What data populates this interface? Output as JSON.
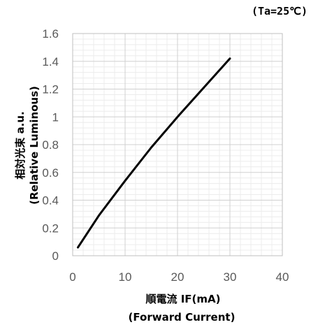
{
  "chart_data": {
    "type": "line",
    "condition": "(Ta=25℃)",
    "xlabel": "順電流 IF(mA)",
    "xlabel_en": "(Forward Current)",
    "ylabel": "相対光束 a.u.",
    "ylabel_en": "(Relative Luminous)",
    "xlim": [
      0,
      40
    ],
    "ylim": [
      0,
      1.6
    ],
    "x_ticks": [
      "0",
      "10",
      "20",
      "30",
      "40"
    ],
    "y_ticks": [
      "0",
      "0.2",
      "0.4",
      "0.6",
      "0.8",
      "1",
      "1.2",
      "1.4",
      "1.6"
    ],
    "grid": true,
    "series": [
      {
        "color": "#000000",
        "x": [
          1,
          5,
          10,
          15,
          20,
          25,
          30
        ],
        "y": [
          0.06,
          0.29,
          0.54,
          0.78,
          1.0,
          1.21,
          1.42
        ]
      }
    ]
  }
}
